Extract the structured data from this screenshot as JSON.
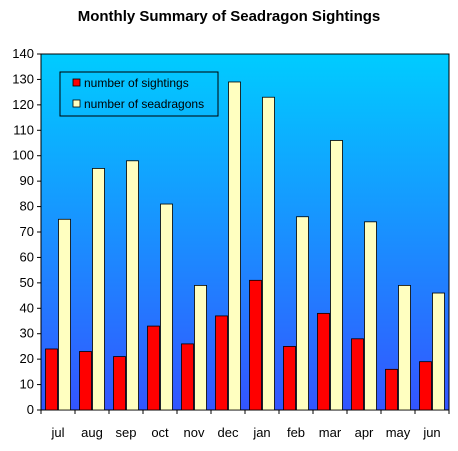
{
  "chart_data": {
    "type": "bar",
    "title": "Monthly Summary of Seadragon Sightings",
    "xlabel": "",
    "ylabel": "",
    "categories": [
      "jul",
      "aug",
      "sep",
      "oct",
      "nov",
      "dec",
      "jan",
      "feb",
      "mar",
      "apr",
      "may",
      "jun"
    ],
    "series": [
      {
        "name": "number of sightings",
        "color": "#ff0000",
        "values": [
          24,
          23,
          21,
          33,
          26,
          37,
          51,
          25,
          38,
          28,
          16,
          19
        ]
      },
      {
        "name": "number of seadragons",
        "color": "#ffffc0",
        "values": [
          75,
          95,
          98,
          81,
          49,
          129,
          123,
          76,
          106,
          74,
          49,
          46
        ]
      }
    ],
    "ylim": [
      0,
      140
    ],
    "yticks": [
      0,
      10,
      20,
      30,
      40,
      50,
      60,
      70,
      80,
      90,
      100,
      110,
      120,
      130,
      140
    ],
    "legend_position": "top-left",
    "grid": false,
    "plot_background": {
      "top_color": "#00ccff",
      "bottom_color": "#3355ff"
    }
  }
}
